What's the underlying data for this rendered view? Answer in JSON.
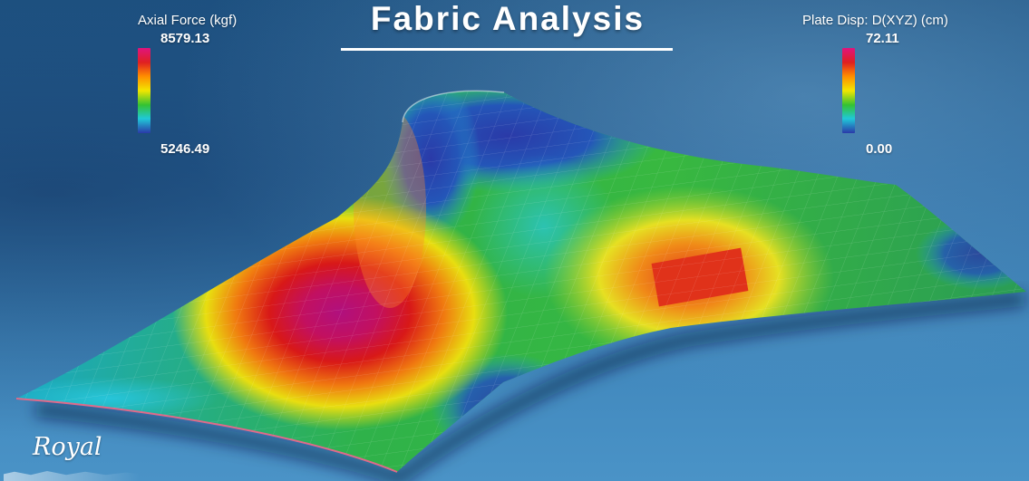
{
  "title": "Fabric Analysis",
  "legend_left": {
    "label": "Axial Force (kgf)",
    "max": "8579.13",
    "min": "5246.49"
  },
  "legend_right": {
    "label": "Plate Disp: D(XYZ) (cm)",
    "max": "72.11",
    "min": "0.00"
  },
  "logo_text": "Royal",
  "colors": {
    "background": "#2a6aa0",
    "colorbar_stops": [
      "#e0147e",
      "#e02020",
      "#ff8c00",
      "#f2e600",
      "#33c233",
      "#20c8d8",
      "#2a3aa8"
    ]
  }
}
